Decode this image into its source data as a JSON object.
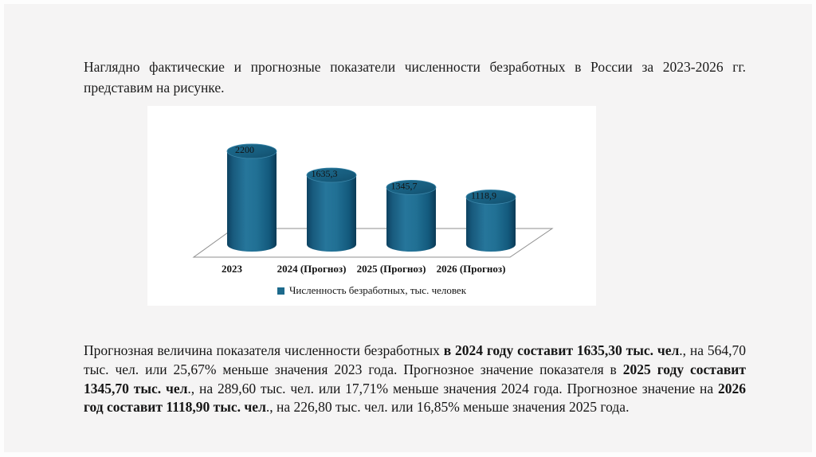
{
  "page": {
    "slide_background": "#f5f4f4",
    "panel_background": "#ffffff"
  },
  "intro": {
    "text": "Наглядно фактические и прогнозные показатели численности безработных в России за 2023-2026 гг. представим на рисунке."
  },
  "chart_data": {
    "type": "bar",
    "subtype": "3d-cylinder",
    "categories": [
      "2023",
      "2024 (Прогноз)",
      "2025 (Прогноз)",
      "2026 (Прогноз)"
    ],
    "values": [
      2200,
      1635.3,
      1345.7,
      1118.9
    ],
    "value_labels": [
      "2200",
      "1635,3",
      "1345,7",
      "1118,9"
    ],
    "series_name": "Численность безработных, тыс. человек",
    "legend_position": "bottom",
    "ylim": [
      0,
      2200
    ],
    "gridlines": false,
    "bar_color": "#1d6a8c",
    "floor_outline_color": "#8f8f8f",
    "label_color": "#131313"
  },
  "analysis": {
    "runs": [
      {
        "text": "Прогнозная величина показателя численности безработных ",
        "bold": false
      },
      {
        "text": "в 2024 году составит 1635,30 тыс. чел",
        "bold": true
      },
      {
        "text": "., на 564,70 тыс. чел. или 25,67% меньше значения 2023 года. Прогнозное значение показателя в ",
        "bold": false
      },
      {
        "text": "2025 году составит 1345,70 тыс. чел",
        "bold": true
      },
      {
        "text": "., на 289,60 тыс. чел. или 17,71% меньше значения 2024 года. Прогнозное значение на ",
        "bold": false
      },
      {
        "text": "2026 год составит 1118,90 тыс. чел",
        "bold": true
      },
      {
        "text": "., на 226,80 тыс. чел. или 16,85% меньше значения 2025 года.",
        "bold": false
      }
    ]
  }
}
